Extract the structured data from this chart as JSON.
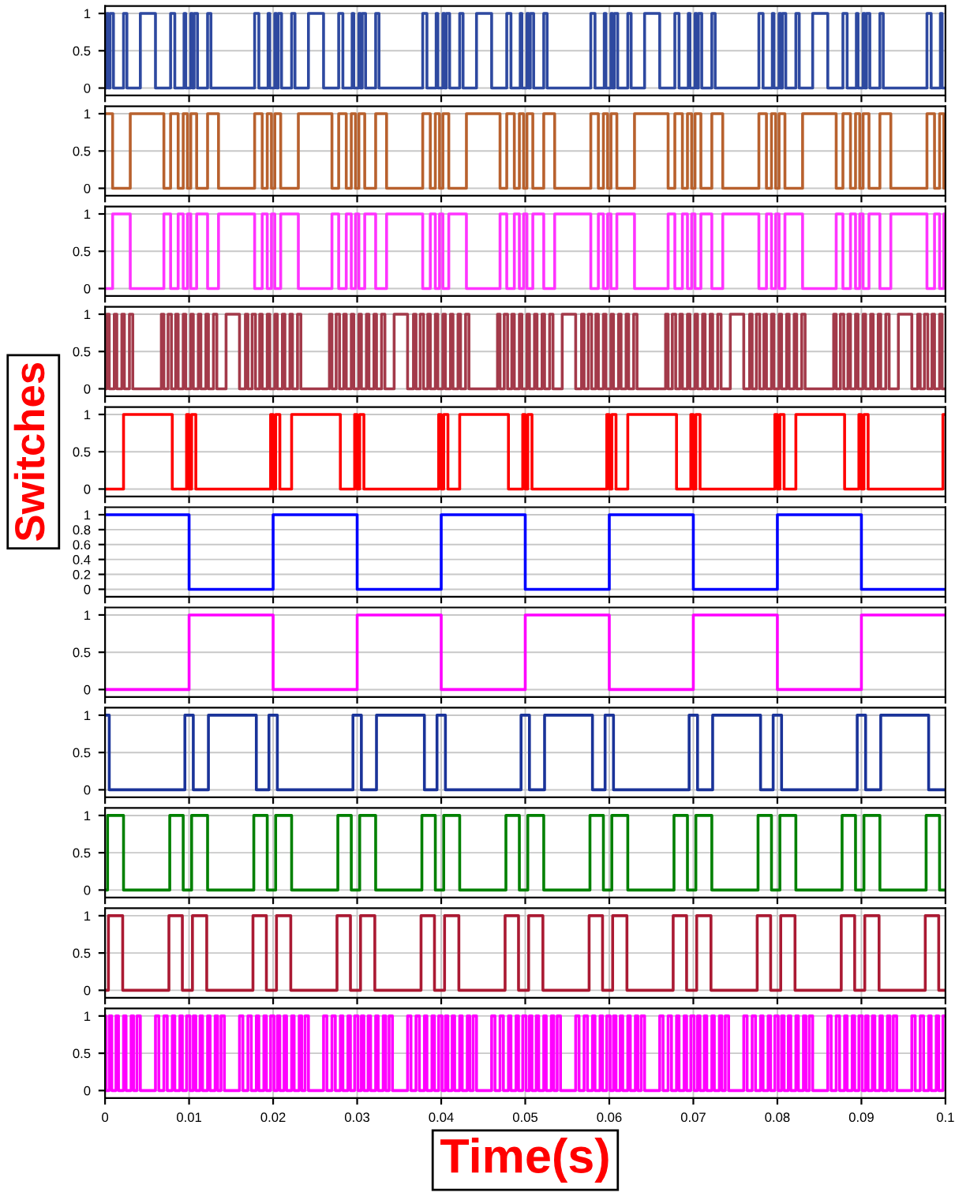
{
  "chart_data": [
    {
      "type": "step",
      "tick_labels": "y",
      "grid": true,
      "xlim": [
        0,
        0.1
      ],
      "xticks": [
        0,
        0.01,
        0.02,
        0.03,
        0.04,
        0.05,
        0.06,
        0.07,
        0.08,
        0.09,
        0.1
      ],
      "ylim": [
        -0.1,
        1.1
      ],
      "yticks": [
        0,
        0.5,
        1
      ],
      "series": [
        {
          "color": "#2e49a0",
          "x": [
            0,
            0.0002,
            0.0004,
            0.0006,
            0.001,
            0.0022,
            0.0026,
            0.0042,
            0.006,
            0.0078,
            0.0083,
            0.0094,
            0.0096,
            0.0102,
            0.0104,
            0.0106,
            0.011,
            0.0122,
            0.0126,
            0.0178,
            0.0183,
            0.0194,
            0.0196,
            0.0202,
            0.0204,
            0.0206,
            0.021,
            0.0222,
            0.0226,
            0.0242,
            0.026,
            0.0278,
            0.0283,
            0.0294,
            0.0296,
            0.0302,
            0.0304,
            0.0306,
            0.031,
            0.0322,
            0.0326,
            0.0378,
            0.0383,
            0.0394,
            0.0396,
            0.0402,
            0.0404,
            0.0406,
            0.041,
            0.0422,
            0.0426,
            0.0442,
            0.046,
            0.0478,
            0.0483,
            0.0494,
            0.0496,
            0.0502,
            0.0504,
            0.0506,
            0.051,
            0.0522,
            0.0526,
            0.0578,
            0.0583,
            0.0594,
            0.0596,
            0.0602,
            0.0604,
            0.0606,
            0.061,
            0.0622,
            0.0626,
            0.0642,
            0.066,
            0.0678,
            0.0683,
            0.0694,
            0.0696,
            0.0702,
            0.0704,
            0.0706,
            0.071,
            0.0722,
            0.0726,
            0.0778,
            0.0783,
            0.0794,
            0.0796,
            0.0802,
            0.0804,
            0.0806,
            0.081,
            0.0822,
            0.0826,
            0.0842,
            0.086,
            0.0878,
            0.0883,
            0.0894,
            0.0896,
            0.0902,
            0.0904,
            0.0906,
            0.091,
            0.0922,
            0.0926,
            0.0978,
            0.0983,
            0.0994,
            0.0996,
            0.1
          ],
          "values": [
            0,
            1,
            0,
            1,
            0,
            1,
            0,
            1,
            0,
            1,
            0,
            1,
            0,
            1,
            0,
            1,
            0,
            1,
            0,
            1,
            0,
            1,
            0,
            1,
            0,
            1,
            0,
            1,
            0,
            1,
            0,
            1,
            0,
            1,
            0,
            1,
            0,
            1,
            0,
            1,
            0,
            1,
            0,
            1,
            0,
            1,
            0,
            1,
            0,
            1,
            0,
            1,
            0,
            1,
            0,
            1,
            0,
            1,
            0,
            1,
            0,
            1,
            0,
            1,
            0,
            1,
            0,
            1,
            0,
            1,
            0,
            1,
            0,
            1,
            0,
            1,
            0,
            1,
            0,
            1,
            0,
            1,
            0,
            1,
            0,
            1,
            0,
            1,
            0,
            1,
            0,
            1,
            0,
            1,
            0,
            1,
            0,
            1,
            0,
            1,
            0,
            1,
            0,
            1,
            0,
            1,
            0,
            1,
            0,
            1,
            0,
            0
          ]
        }
      ]
    },
    {
      "type": "step",
      "tick_labels": "y",
      "grid": true,
      "xlim": [
        0,
        0.1
      ],
      "xticks": [
        0,
        0.01,
        0.02,
        0.03,
        0.04,
        0.05,
        0.06,
        0.07,
        0.08,
        0.09,
        0.1
      ],
      "ylim": [
        -0.1,
        1.1
      ],
      "yticks": [
        0,
        0.5,
        1
      ],
      "series": [
        {
          "color": "#b8612e",
          "x": [
            0,
            0.0009,
            0.003,
            0.007,
            0.0078,
            0.0087,
            0.0093,
            0.0098,
            0.0102,
            0.0109,
            0.0122,
            0.0135,
            0.0178,
            0.0187,
            0.0193,
            0.0198,
            0.0202,
            0.0209,
            0.023,
            0.027,
            0.0278,
            0.0287,
            0.0293,
            0.0298,
            0.0302,
            0.0309,
            0.0322,
            0.0335,
            0.0378,
            0.0387,
            0.0393,
            0.0398,
            0.0402,
            0.0409,
            0.043,
            0.047,
            0.0478,
            0.0487,
            0.0493,
            0.0498,
            0.0502,
            0.0509,
            0.0522,
            0.0535,
            0.0578,
            0.0587,
            0.0593,
            0.0598,
            0.0602,
            0.0609,
            0.063,
            0.067,
            0.0678,
            0.0687,
            0.0693,
            0.0698,
            0.0702,
            0.0709,
            0.0722,
            0.0735,
            0.0778,
            0.0787,
            0.0793,
            0.0798,
            0.0802,
            0.0809,
            0.083,
            0.087,
            0.0878,
            0.0887,
            0.0893,
            0.0898,
            0.0902,
            0.0909,
            0.0922,
            0.0935,
            0.0978,
            0.0987,
            0.0993,
            0.0998,
            0.1
          ],
          "values": [
            1,
            0,
            1,
            0,
            1,
            0,
            1,
            0,
            1,
            0,
            1,
            0,
            1,
            0,
            1,
            0,
            1,
            0,
            1,
            0,
            1,
            0,
            1,
            0,
            1,
            0,
            1,
            0,
            1,
            0,
            1,
            0,
            1,
            0,
            1,
            0,
            1,
            0,
            1,
            0,
            1,
            0,
            1,
            0,
            1,
            0,
            1,
            0,
            1,
            0,
            1,
            0,
            1,
            0,
            1,
            0,
            1,
            0,
            1,
            0,
            1,
            0,
            1,
            0,
            1,
            0,
            1,
            0,
            1,
            0,
            1,
            0,
            1,
            0,
            1,
            0,
            1,
            0,
            1,
            0,
            0
          ]
        }
      ]
    },
    {
      "type": "step",
      "tick_labels": "y",
      "grid": true,
      "xlim": [
        0,
        0.1
      ],
      "xticks": [
        0,
        0.01,
        0.02,
        0.03,
        0.04,
        0.05,
        0.06,
        0.07,
        0.08,
        0.09,
        0.1
      ],
      "ylim": [
        -0.1,
        1.1
      ],
      "yticks": [
        0,
        0.5,
        1
      ],
      "series": [
        {
          "color": "#ff33ff",
          "x": [
            0,
            0.0009,
            0.003,
            0.007,
            0.0078,
            0.0087,
            0.0093,
            0.0098,
            0.0102,
            0.0109,
            0.0122,
            0.0135,
            0.0178,
            0.0187,
            0.0193,
            0.0198,
            0.0202,
            0.0209,
            0.023,
            0.027,
            0.0278,
            0.0287,
            0.0293,
            0.0298,
            0.0302,
            0.0309,
            0.0322,
            0.0335,
            0.0378,
            0.0387,
            0.0393,
            0.0398,
            0.0402,
            0.0409,
            0.043,
            0.047,
            0.0478,
            0.0487,
            0.0493,
            0.0498,
            0.0502,
            0.0509,
            0.0522,
            0.0535,
            0.0578,
            0.0587,
            0.0593,
            0.0598,
            0.0602,
            0.0609,
            0.063,
            0.067,
            0.0678,
            0.0687,
            0.0693,
            0.0698,
            0.0702,
            0.0709,
            0.0722,
            0.0735,
            0.0778,
            0.0787,
            0.0793,
            0.0798,
            0.0802,
            0.0809,
            0.083,
            0.087,
            0.0878,
            0.0887,
            0.0893,
            0.0898,
            0.0902,
            0.0909,
            0.0922,
            0.0935,
            0.0978,
            0.0987,
            0.0993,
            0.0998,
            0.1
          ],
          "values": [
            0,
            1,
            0,
            1,
            0,
            1,
            0,
            1,
            0,
            1,
            0,
            1,
            0,
            1,
            0,
            1,
            0,
            1,
            0,
            1,
            0,
            1,
            0,
            1,
            0,
            1,
            0,
            1,
            0,
            1,
            0,
            1,
            0,
            1,
            0,
            1,
            0,
            1,
            0,
            1,
            0,
            1,
            0,
            1,
            0,
            1,
            0,
            1,
            0,
            1,
            0,
            1,
            0,
            1,
            0,
            1,
            0,
            1,
            0,
            1,
            0,
            1,
            0,
            1,
            0,
            1,
            0,
            1,
            0,
            1,
            0,
            1,
            0,
            1,
            0,
            1,
            0,
            1,
            0,
            1,
            1
          ]
        }
      ]
    },
    {
      "type": "step",
      "tick_labels": "y",
      "grid": true,
      "xlim": [
        0,
        0.1
      ],
      "xticks": [
        0,
        0.01,
        0.02,
        0.03,
        0.04,
        0.05,
        0.06,
        0.07,
        0.08,
        0.09,
        0.1
      ],
      "ylim": [
        -0.1,
        1.1
      ],
      "yticks": [
        0,
        0.5,
        1
      ],
      "series": [
        {
          "color": "#a33a4a",
          "x": [
            0,
            0.0002,
            0.0005,
            0.0011,
            0.0014,
            0.002,
            0.0023,
            0.0029,
            0.0033,
            0.0067,
            0.007,
            0.0075,
            0.0079,
            0.0084,
            0.0087,
            0.0093,
            0.0096,
            0.0102,
            0.0105,
            0.0111,
            0.0114,
            0.012,
            0.0123,
            0.0129,
            0.0133,
            0.0144,
            0.016,
            0.0167,
            0.017,
            0.0175,
            0.0179,
            0.0184,
            0.0187,
            0.0193,
            0.0196,
            0.0202,
            0.0205,
            0.0211,
            0.0214,
            0.022,
            0.0223,
            0.0229,
            0.0233,
            0.0267,
            0.027,
            0.0275,
            0.0279,
            0.0284,
            0.0287,
            0.0293,
            0.0296,
            0.0302,
            0.0305,
            0.0311,
            0.0314,
            0.032,
            0.0323,
            0.0329,
            0.0333,
            0.0344,
            0.036,
            0.0367,
            0.037,
            0.0375,
            0.0379,
            0.0384,
            0.0387,
            0.0393,
            0.0396,
            0.0402,
            0.0405,
            0.0411,
            0.0414,
            0.042,
            0.0423,
            0.0429,
            0.0433,
            0.0467,
            0.047,
            0.0475,
            0.0479,
            0.0484,
            0.0487,
            0.0493,
            0.0496,
            0.0502,
            0.0505,
            0.0511,
            0.0514,
            0.052,
            0.0523,
            0.0529,
            0.0533,
            0.0544,
            0.056,
            0.0567,
            0.057,
            0.0575,
            0.0579,
            0.0584,
            0.0587,
            0.0593,
            0.0596,
            0.0602,
            0.0605,
            0.0611,
            0.0614,
            0.062,
            0.0623,
            0.0629,
            0.0633,
            0.0667,
            0.067,
            0.0675,
            0.0679,
            0.0684,
            0.0687,
            0.0693,
            0.0696,
            0.0702,
            0.0705,
            0.0711,
            0.0714,
            0.072,
            0.0723,
            0.0729,
            0.0733,
            0.0744,
            0.076,
            0.0767,
            0.077,
            0.0775,
            0.0779,
            0.0784,
            0.0787,
            0.0793,
            0.0796,
            0.0802,
            0.0805,
            0.0811,
            0.0814,
            0.082,
            0.0823,
            0.0829,
            0.0833,
            0.0867,
            0.087,
            0.0875,
            0.0879,
            0.0884,
            0.0887,
            0.0893,
            0.0896,
            0.0902,
            0.0905,
            0.0911,
            0.0914,
            0.092,
            0.0923,
            0.0929,
            0.0933,
            0.0944,
            0.096,
            0.0967,
            0.097,
            0.0975,
            0.0979,
            0.0984,
            0.0987,
            0.0993,
            0.0996,
            0.1
          ],
          "values": [
            0,
            1,
            0,
            1,
            0,
            1,
            0,
            1,
            0,
            1,
            0,
            1,
            0,
            1,
            0,
            1,
            0,
            1,
            0,
            1,
            0,
            1,
            0,
            1,
            0,
            1,
            0,
            1,
            0,
            1,
            0,
            1,
            0,
            1,
            0,
            1,
            0,
            1,
            0,
            1,
            0,
            1,
            0,
            1,
            0,
            1,
            0,
            1,
            0,
            1,
            0,
            1,
            0,
            1,
            0,
            1,
            0,
            1,
            0,
            1,
            0,
            1,
            0,
            1,
            0,
            1,
            0,
            1,
            0,
            1,
            0,
            1,
            0,
            1,
            0,
            1,
            0,
            1,
            0,
            1,
            0,
            1,
            0,
            1,
            0,
            1,
            0,
            1,
            0,
            1,
            0,
            1,
            0,
            1,
            0,
            1,
            0,
            1,
            0,
            1,
            0,
            1,
            0,
            1,
            0,
            1,
            0,
            1,
            0,
            1,
            0,
            1,
            0,
            1,
            0,
            1,
            0,
            1,
            0,
            1,
            0,
            1,
            0,
            1,
            0,
            1,
            0,
            1,
            0,
            1,
            0,
            1,
            0,
            1,
            0,
            1,
            0,
            1,
            0,
            1,
            0,
            1,
            0,
            1,
            0,
            1,
            0,
            1,
            0,
            1,
            0,
            1,
            0,
            1,
            0,
            1,
            0,
            1,
            0,
            1,
            0,
            1,
            0,
            1,
            0,
            1,
            0,
            1,
            0,
            1,
            0,
            0
          ]
        }
      ]
    },
    {
      "type": "step",
      "tick_labels": "y",
      "grid": true,
      "ylabel": "Switches",
      "xlim": [
        0,
        0.1
      ],
      "xticks": [
        0,
        0.01,
        0.02,
        0.03,
        0.04,
        0.05,
        0.06,
        0.07,
        0.08,
        0.09,
        0.1
      ],
      "ylim": [
        -0.1,
        1.1
      ],
      "yticks": [
        0,
        0.5,
        1
      ],
      "series": [
        {
          "color": "#ff0000",
          "x": [
            0,
            0.0022,
            0.008,
            0.0097,
            0.01,
            0.0103,
            0.0108,
            0.0197,
            0.02,
            0.0203,
            0.0208,
            0.0222,
            0.028,
            0.0297,
            0.03,
            0.0303,
            0.0308,
            0.0397,
            0.04,
            0.0403,
            0.0408,
            0.0422,
            0.048,
            0.0497,
            0.05,
            0.0503,
            0.0508,
            0.0597,
            0.06,
            0.0603,
            0.0608,
            0.0622,
            0.068,
            0.0697,
            0.07,
            0.0703,
            0.0708,
            0.0797,
            0.08,
            0.0803,
            0.0808,
            0.0822,
            0.088,
            0.0897,
            0.09,
            0.0903,
            0.0908,
            0.0997,
            0.1
          ],
          "values": [
            0,
            1,
            0,
            1,
            0,
            1,
            0,
            1,
            0,
            1,
            0,
            1,
            0,
            1,
            0,
            1,
            0,
            1,
            0,
            1,
            0,
            1,
            0,
            1,
            0,
            1,
            0,
            1,
            0,
            1,
            0,
            1,
            0,
            1,
            0,
            1,
            0,
            1,
            0,
            1,
            0,
            1,
            0,
            1,
            0,
            1,
            0,
            1,
            1
          ]
        }
      ]
    },
    {
      "type": "step",
      "tick_labels": "y",
      "grid": true,
      "xlim": [
        0,
        0.1
      ],
      "xticks": [
        0,
        0.01,
        0.02,
        0.03,
        0.04,
        0.05,
        0.06,
        0.07,
        0.08,
        0.09,
        0.1
      ],
      "ylim": [
        -0.1,
        1.1
      ],
      "yticks": [
        0,
        0.2,
        0.4,
        0.6,
        0.8,
        1
      ],
      "series": [
        {
          "color": "#0000ff",
          "x": [
            0,
            0.01,
            0.02,
            0.03,
            0.04,
            0.05,
            0.06,
            0.07,
            0.08,
            0.09,
            0.1
          ],
          "values": [
            1,
            0,
            1,
            0,
            1,
            0,
            1,
            0,
            1,
            0,
            0
          ]
        }
      ]
    },
    {
      "type": "step",
      "tick_labels": "y",
      "grid": true,
      "xlim": [
        0,
        0.1
      ],
      "xticks": [
        0,
        0.01,
        0.02,
        0.03,
        0.04,
        0.05,
        0.06,
        0.07,
        0.08,
        0.09,
        0.1
      ],
      "ylim": [
        -0.1,
        1.1
      ],
      "yticks": [
        0,
        0.5,
        1
      ],
      "series": [
        {
          "color": "#ff00ff",
          "x": [
            0,
            0.01,
            0.02,
            0.03,
            0.04,
            0.05,
            0.06,
            0.07,
            0.08,
            0.09,
            0.1
          ],
          "values": [
            0,
            1,
            0,
            1,
            0,
            1,
            0,
            1,
            0,
            1,
            1
          ]
        }
      ]
    },
    {
      "type": "step",
      "tick_labels": "y",
      "grid": true,
      "xlim": [
        0,
        0.1
      ],
      "xticks": [
        0,
        0.01,
        0.02,
        0.03,
        0.04,
        0.05,
        0.06,
        0.07,
        0.08,
        0.09,
        0.1
      ],
      "ylim": [
        -0.1,
        1.1
      ],
      "yticks": [
        0,
        0.5,
        1
      ],
      "series": [
        {
          "color": "#1a3399",
          "x": [
            0,
            0.0005,
            0.0095,
            0.0105,
            0.0123,
            0.018,
            0.0195,
            0.0205,
            0.0295,
            0.0305,
            0.0323,
            0.038,
            0.0395,
            0.0405,
            0.0495,
            0.0505,
            0.0523,
            0.058,
            0.0595,
            0.0605,
            0.0695,
            0.0705,
            0.0723,
            0.078,
            0.0795,
            0.0805,
            0.0895,
            0.0905,
            0.0923,
            0.098,
            0.1
          ],
          "values": [
            1,
            0,
            1,
            0,
            1,
            0,
            1,
            0,
            1,
            0,
            1,
            0,
            1,
            0,
            1,
            0,
            1,
            0,
            1,
            0,
            1,
            0,
            1,
            0,
            1,
            0,
            1,
            0,
            1,
            0,
            0
          ]
        }
      ]
    },
    {
      "type": "step",
      "tick_labels": "y",
      "grid": true,
      "xlim": [
        0,
        0.1
      ],
      "xticks": [
        0,
        0.01,
        0.02,
        0.03,
        0.04,
        0.05,
        0.06,
        0.07,
        0.08,
        0.09,
        0.1
      ],
      "ylim": [
        -0.1,
        1.1
      ],
      "yticks": [
        0,
        0.5,
        1
      ],
      "series": [
        {
          "color": "#008000",
          "x": [
            0,
            0.0003,
            0.0022,
            0.0077,
            0.0093,
            0.0103,
            0.0122,
            0.0177,
            0.0193,
            0.0203,
            0.0222,
            0.0277,
            0.0293,
            0.0303,
            0.0322,
            0.0377,
            0.0393,
            0.0403,
            0.0422,
            0.0477,
            0.0493,
            0.0503,
            0.0522,
            0.0577,
            0.0593,
            0.0603,
            0.0622,
            0.0677,
            0.0693,
            0.0703,
            0.0722,
            0.0777,
            0.0793,
            0.0803,
            0.0822,
            0.0877,
            0.0893,
            0.0903,
            0.0922,
            0.0977,
            0.0993,
            0.1
          ],
          "values": [
            0,
            1,
            0,
            1,
            0,
            1,
            0,
            1,
            0,
            1,
            0,
            1,
            0,
            1,
            0,
            1,
            0,
            1,
            0,
            1,
            0,
            1,
            0,
            1,
            0,
            1,
            0,
            1,
            0,
            1,
            0,
            1,
            0,
            1,
            0,
            1,
            0,
            1,
            0,
            1,
            0,
            0
          ]
        }
      ]
    },
    {
      "type": "step",
      "tick_labels": "y",
      "grid": true,
      "xlim": [
        0,
        0.1
      ],
      "xticks": [
        0,
        0.01,
        0.02,
        0.03,
        0.04,
        0.05,
        0.06,
        0.07,
        0.08,
        0.09,
        0.1
      ],
      "ylim": [
        -0.1,
        1.1
      ],
      "yticks": [
        0,
        0.5,
        1
      ],
      "series": [
        {
          "color": "#aa1a33",
          "x": [
            0,
            0.0004,
            0.0021,
            0.0076,
            0.0092,
            0.0104,
            0.0121,
            0.0176,
            0.0192,
            0.0204,
            0.0221,
            0.0276,
            0.0292,
            0.0304,
            0.0321,
            0.0376,
            0.0392,
            0.0404,
            0.0421,
            0.0476,
            0.0492,
            0.0504,
            0.0521,
            0.0576,
            0.0592,
            0.0604,
            0.0621,
            0.0676,
            0.0692,
            0.0704,
            0.0721,
            0.0776,
            0.0792,
            0.0804,
            0.0821,
            0.0876,
            0.0892,
            0.0904,
            0.0921,
            0.0976,
            0.0992,
            0.1
          ],
          "values": [
            0,
            1,
            0,
            1,
            0,
            1,
            0,
            1,
            0,
            1,
            0,
            1,
            0,
            1,
            0,
            1,
            0,
            1,
            0,
            1,
            0,
            1,
            0,
            1,
            0,
            1,
            0,
            1,
            0,
            1,
            0,
            1,
            0,
            1,
            0,
            1,
            0,
            1,
            0,
            1,
            0,
            0
          ]
        }
      ]
    },
    {
      "type": "step",
      "grid": true,
      "xlabel": "Time(s)",
      "xlim": [
        0,
        0.1
      ],
      "xticks": [
        0,
        0.01,
        0.02,
        0.03,
        0.04,
        0.05,
        0.06,
        0.07,
        0.08,
        0.09,
        0.1
      ],
      "ylim": [
        -0.1,
        1.1
      ],
      "yticks": [
        0,
        0.5,
        1
      ],
      "series": [
        {
          "color": "#ff00ff",
          "x": [
            0,
            0.0001,
            0.0005,
            0.0008,
            0.0013,
            0.0016,
            0.0022,
            0.0025,
            0.0031,
            0.0034,
            0.0038,
            0.0042,
            0.006,
            0.0064,
            0.007,
            0.0074,
            0.008,
            0.0083,
            0.0089,
            0.0092,
            0.0097,
            0.0101,
            0.0105,
            0.0108,
            0.0113,
            0.0116,
            0.0122,
            0.0125,
            0.0131,
            0.0134,
            0.0138,
            0.0142,
            0.016,
            0.0164,
            0.017,
            0.0174,
            0.018,
            0.0183,
            0.0189,
            0.0192,
            0.0197,
            0.0201,
            0.0205,
            0.0208,
            0.0213,
            0.0216,
            0.0222,
            0.0225,
            0.0231,
            0.0234,
            0.0238,
            0.0242,
            0.026,
            0.0264,
            0.027,
            0.0274,
            0.028,
            0.0283,
            0.0289,
            0.0292,
            0.0297,
            0.0301,
            0.0305,
            0.0308,
            0.0313,
            0.0316,
            0.0322,
            0.0325,
            0.0331,
            0.0334,
            0.0338,
            0.0342,
            0.036,
            0.0364,
            0.037,
            0.0374,
            0.038,
            0.0383,
            0.0389,
            0.0392,
            0.0397,
            0.0401,
            0.0405,
            0.0408,
            0.0413,
            0.0416,
            0.0422,
            0.0425,
            0.0431,
            0.0434,
            0.0438,
            0.0442,
            0.046,
            0.0464,
            0.047,
            0.0474,
            0.048,
            0.0483,
            0.0489,
            0.0492,
            0.0497,
            0.0501,
            0.0505,
            0.0508,
            0.0513,
            0.0516,
            0.0522,
            0.0525,
            0.0531,
            0.0534,
            0.0538,
            0.0542,
            0.056,
            0.0564,
            0.057,
            0.0574,
            0.058,
            0.0583,
            0.0589,
            0.0592,
            0.0597,
            0.0601,
            0.0605,
            0.0608,
            0.0613,
            0.0616,
            0.0622,
            0.0625,
            0.0631,
            0.0634,
            0.0638,
            0.0642,
            0.066,
            0.0664,
            0.067,
            0.0674,
            0.068,
            0.0683,
            0.0689,
            0.0692,
            0.0697,
            0.0701,
            0.0705,
            0.0708,
            0.0713,
            0.0716,
            0.0722,
            0.0725,
            0.0731,
            0.0734,
            0.0738,
            0.0742,
            0.076,
            0.0764,
            0.077,
            0.0774,
            0.078,
            0.0783,
            0.0789,
            0.0792,
            0.0797,
            0.0801,
            0.0805,
            0.0808,
            0.0813,
            0.0816,
            0.0822,
            0.0825,
            0.0831,
            0.0834,
            0.0838,
            0.0842,
            0.086,
            0.0864,
            0.087,
            0.0874,
            0.088,
            0.0883,
            0.0889,
            0.0892,
            0.0897,
            0.0901,
            0.0905,
            0.0908,
            0.0913,
            0.0916,
            0.0922,
            0.0925,
            0.0931,
            0.0934,
            0.0938,
            0.0942,
            0.096,
            0.0964,
            0.097,
            0.0974,
            0.098,
            0.0983,
            0.0989,
            0.0992,
            0.0997,
            0.1
          ],
          "values": [
            1,
            0,
            1,
            0,
            1,
            0,
            1,
            0,
            1,
            0,
            1,
            0,
            1,
            0,
            1,
            0,
            1,
            0,
            1,
            0,
            1,
            0,
            1,
            0,
            1,
            0,
            1,
            0,
            1,
            0,
            1,
            0,
            1,
            0,
            1,
            0,
            1,
            0,
            1,
            0,
            1,
            0,
            1,
            0,
            1,
            0,
            1,
            0,
            1,
            0,
            1,
            0,
            1,
            0,
            1,
            0,
            1,
            0,
            1,
            0,
            1,
            0,
            1,
            0,
            1,
            0,
            1,
            0,
            1,
            0,
            1,
            0,
            1,
            0,
            1,
            0,
            1,
            0,
            1,
            0,
            1,
            0,
            1,
            0,
            1,
            0,
            1,
            0,
            1,
            0,
            1,
            0,
            1,
            0,
            1,
            0,
            1,
            0,
            1,
            0,
            1,
            0,
            1,
            0,
            1,
            0,
            1,
            0,
            1,
            0,
            1,
            0,
            1,
            0,
            1,
            0,
            1,
            0,
            1,
            0,
            1,
            0,
            1,
            0,
            1,
            0,
            1,
            0,
            1,
            0,
            1,
            0,
            1,
            0,
            1,
            0,
            1,
            0,
            1,
            0,
            1,
            0,
            1,
            0,
            1,
            0,
            1,
            0,
            1,
            0,
            1,
            0,
            1,
            0,
            1,
            0,
            1,
            0,
            1,
            0,
            1,
            0,
            1,
            0,
            1,
            0,
            1,
            0,
            1,
            0,
            1,
            0,
            1,
            0,
            1,
            0,
            1,
            0,
            1,
            0,
            1,
            0,
            1,
            0,
            1,
            0,
            1,
            0,
            1,
            0,
            1,
            0,
            1,
            0,
            1,
            0,
            1,
            0,
            1,
            0,
            1,
            1
          ]
        }
      ]
    }
  ]
}
